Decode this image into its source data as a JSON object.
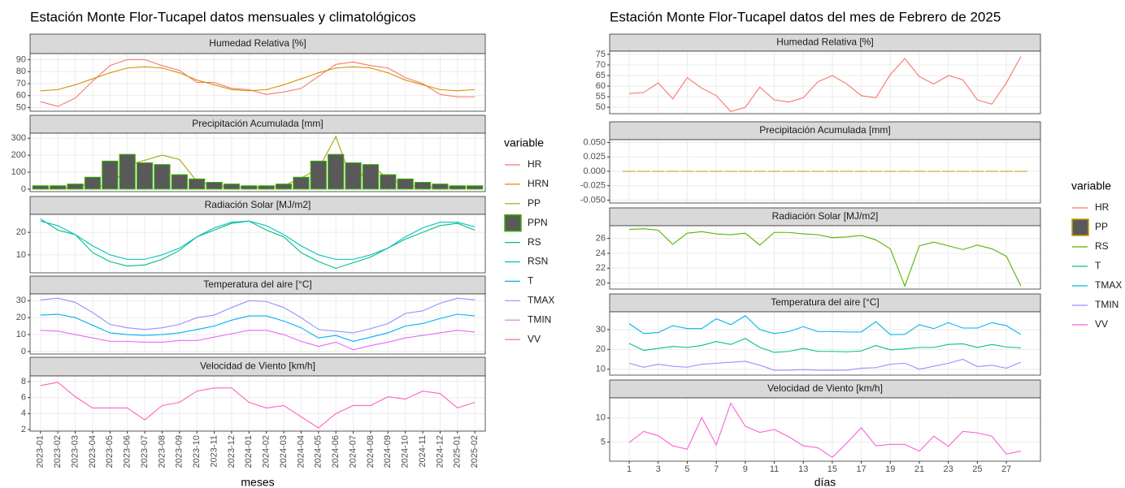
{
  "chart_data": [
    {
      "type": "line",
      "title": "Estación Monte Flor-Tucapel datos mensuales y climatológicos",
      "x_label": "meses",
      "legend_title": "variable",
      "categories": [
        "2023-01",
        "2023-02",
        "2023-03",
        "2023-04",
        "2023-05",
        "2023-06",
        "2023-07",
        "2023-08",
        "2023-09",
        "2023-10",
        "2023-11",
        "2023-12",
        "2024-01",
        "2024-02",
        "2024-03",
        "2024-04",
        "2024-05",
        "2024-06",
        "2024-07",
        "2024-08",
        "2024-09",
        "2024-10",
        "2024-11",
        "2024-12",
        "2025-01",
        "2025-02"
      ],
      "facets": [
        {
          "title": "Humedad Relativa [%]",
          "ylim": [
            47,
            95
          ],
          "yticks": [
            50,
            60,
            70,
            80,
            90
          ],
          "series": [
            {
              "name": "HR",
              "color": "#F8766D",
              "values": [
                55,
                51,
                58,
                72,
                85,
                90,
                90,
                85,
                81,
                71,
                71,
                66,
                65,
                61,
                63,
                66,
                76,
                86,
                88,
                85,
                83,
                75,
                70,
                61,
                59,
                59
              ]
            },
            {
              "name": "HRN",
              "color": "#D89000",
              "values": [
                64,
                65,
                69,
                74,
                79,
                83,
                84,
                83,
                79,
                73,
                69,
                65,
                64,
                65,
                69,
                74,
                79,
                83,
                84,
                83,
                79,
                73,
                69,
                65,
                64,
                65
              ]
            }
          ]
        },
        {
          "title": "Precipitación Acumulada [mm]",
          "ylim": [
            -15,
            330
          ],
          "yticks": [
            0,
            100,
            200,
            300
          ],
          "series": [
            {
              "name": "PP",
              "color": "#A3A500",
              "values": [
                5,
                5,
                10,
                35,
                5,
                140,
                170,
                200,
                175,
                45,
                20,
                10,
                10,
                10,
                20,
                65,
                120,
                310,
                25,
                145,
                60,
                25,
                15,
                10,
                10,
                10
              ]
            },
            {
              "name": "PPN",
              "color": "#39B600",
              "fill": "#595959",
              "style": "bar",
              "values": [
                20,
                20,
                30,
                70,
                165,
                205,
                155,
                145,
                85,
                60,
                40,
                30,
                20,
                20,
                30,
                70,
                165,
                205,
                155,
                145,
                85,
                60,
                40,
                30,
                20,
                20
              ]
            }
          ]
        },
        {
          "title": "Radiación Solar [MJ/m2]",
          "ylim": [
            2,
            28
          ],
          "yticks": [
            10,
            20
          ],
          "series": [
            {
              "name": "RS",
              "color": "#00BF7D",
              "values": [
                26,
                21,
                19,
                11,
                7,
                5,
                5.5,
                8,
                12,
                18,
                21,
                24,
                25,
                21,
                18,
                11,
                7,
                4,
                6.5,
                9,
                13,
                17,
                20,
                23,
                24,
                21
              ]
            },
            {
              "name": "RSN",
              "color": "#00BFC4",
              "values": [
                25,
                23,
                19,
                14,
                10,
                8,
                8,
                10,
                13,
                18,
                22,
                24.5,
                25,
                23,
                19,
                14,
                10,
                8,
                8,
                10,
                13,
                18,
                22,
                24.5,
                24.5,
                22.5
              ]
            }
          ]
        },
        {
          "title": "Temperatura del aire [°C]",
          "ylim": [
            -1.5,
            34
          ],
          "yticks": [
            0,
            10,
            20,
            30
          ],
          "series": [
            {
              "name": "T",
              "color": "#00B0F6",
              "values": [
                21.5,
                22,
                20,
                15.5,
                11,
                10,
                9.5,
                10,
                11,
                13,
                15,
                18.5,
                21,
                21,
                18,
                14,
                8,
                9.5,
                6,
                8.5,
                11,
                15,
                16.5,
                19.5,
                22,
                21
              ]
            },
            {
              "name": "TMAX",
              "color": "#9590FF",
              "values": [
                30.5,
                31.5,
                29,
                23,
                16,
                14,
                13,
                14,
                16,
                20,
                21.5,
                26,
                30,
                29.5,
                26,
                20,
                13,
                12,
                11,
                13.5,
                16.5,
                22.5,
                24,
                28.5,
                31.5,
                30.5
              ]
            },
            {
              "name": "TMIN",
              "color": "#E76BF3",
              "values": [
                12.5,
                12,
                10,
                8,
                6,
                6,
                5.5,
                5.5,
                6.5,
                6.5,
                8.5,
                10.5,
                12.5,
                12.5,
                10,
                6,
                3,
                5.5,
                1,
                3.5,
                5.5,
                8,
                9.5,
                11,
                12.5,
                11.5
              ]
            }
          ]
        },
        {
          "title": "Velocidad de Viento [km/h]",
          "ylim": [
            1.8,
            8.7
          ],
          "yticks": [
            2,
            4,
            6,
            8
          ],
          "series": [
            {
              "name": "VV",
              "color": "#FF62BC",
              "values": [
                7.5,
                7.9,
                6.1,
                4.7,
                4.7,
                4.7,
                3.2,
                5.0,
                5.4,
                6.8,
                7.2,
                7.2,
                5.4,
                4.7,
                5.0,
                3.6,
                2.2,
                4.0,
                5.0,
                5.0,
                6.1,
                5.8,
                6.8,
                6.5,
                4.7,
                5.4
              ]
            }
          ]
        }
      ]
    },
    {
      "type": "line",
      "title": "Estación Monte Flor-Tucapel datos del mes de Febrero de 2025",
      "x_label": "días",
      "legend_title": "variable",
      "x": [
        1,
        2,
        3,
        4,
        5,
        6,
        7,
        8,
        9,
        10,
        11,
        12,
        13,
        14,
        15,
        16,
        17,
        18,
        19,
        20,
        21,
        22,
        23,
        24,
        25,
        26,
        27,
        28
      ],
      "xlim": [
        -0.35,
        29.35
      ],
      "xticks": [
        1,
        3,
        5,
        7,
        9,
        11,
        13,
        15,
        17,
        19,
        21,
        23,
        25,
        27
      ],
      "facets": [
        {
          "title": "Humedad Relativa [%]",
          "ylim": [
            47,
            76.5
          ],
          "yticks": [
            50,
            55,
            60,
            65,
            70,
            75
          ],
          "series": [
            {
              "name": "HR",
              "color": "#F8766D",
              "values": [
                56.5,
                57,
                61.5,
                54,
                64,
                59,
                55.5,
                48,
                50,
                59.5,
                53.5,
                52.5,
                54.5,
                62,
                65,
                61,
                55.5,
                54.5,
                65.5,
                73,
                64.5,
                61,
                65,
                63,
                53.5,
                51.5,
                61.5,
                74
              ]
            }
          ]
        },
        {
          "title": "Precipitación Acumulada [mm]",
          "ylim": [
            -0.055,
            0.055
          ],
          "yticks": [
            {
              "value": -0.05,
              "label": "-0.050"
            },
            {
              "value": -0.025,
              "label": "-0.025"
            },
            {
              "value": 0,
              "label": "0.000"
            },
            {
              "value": 0.025,
              "label": "0.025"
            },
            {
              "value": 0.05,
              "label": "0.050"
            }
          ],
          "series": [
            {
              "name": "PP",
              "color": "#C49A00",
              "fill": "#595959",
              "style": "bar",
              "values": [
                0,
                0,
                0,
                0,
                0,
                0,
                0,
                0,
                0,
                0,
                0,
                0,
                0,
                0,
                0,
                0,
                0,
                0,
                0,
                0,
                0,
                0,
                0,
                0,
                0,
                0,
                0,
                0
              ]
            }
          ]
        },
        {
          "title": "Radiación Solar [MJ/m2]",
          "ylim": [
            19.2,
            27.7
          ],
          "yticks": [
            20,
            22,
            24,
            26
          ],
          "series": [
            {
              "name": "RS",
              "color": "#53B400",
              "values": [
                27.2,
                27.3,
                27.1,
                25.2,
                26.7,
                26.9,
                26.6,
                26.5,
                26.7,
                25.1,
                26.8,
                26.8,
                26.6,
                26.5,
                26.1,
                26.2,
                26.4,
                25.8,
                24.6,
                19.6,
                25.0,
                25.5,
                25.0,
                24.5,
                25.1,
                24.6,
                23.6,
                19.6
              ]
            }
          ]
        },
        {
          "title": "Temperatura del aire [°C]",
          "ylim": [
            7,
            39
          ],
          "yticks": [
            10,
            20,
            30
          ],
          "series": [
            {
              "name": "T",
              "color": "#00C094",
              "values": [
                23,
                19.5,
                20.5,
                21.5,
                21,
                22,
                24,
                22.5,
                25.5,
                21,
                18.5,
                19,
                20.5,
                19,
                19,
                18.8,
                19.2,
                22,
                19.8,
                20.2,
                21,
                21,
                22.5,
                22.8,
                21,
                22.5,
                21.2,
                20.8
              ]
            },
            {
              "name": "TMAX",
              "color": "#00B6EB",
              "values": [
                33,
                28,
                28.5,
                32,
                30.5,
                30.5,
                35.5,
                32.5,
                37,
                30,
                28,
                29,
                31.5,
                29,
                29,
                28.8,
                28.8,
                34,
                27.5,
                27.6,
                32.5,
                30.5,
                33.5,
                30.8,
                30.8,
                33.5,
                32,
                27.5
              ]
            },
            {
              "name": "TMIN",
              "color": "#A58AFF",
              "values": [
                13,
                11,
                12.5,
                11.5,
                11,
                12.5,
                13,
                13.5,
                14,
                12,
                9.5,
                9.5,
                9.8,
                9.5,
                9.5,
                9.5,
                10.5,
                10.8,
                12.5,
                13,
                10,
                11.5,
                13,
                15,
                11.3,
                12,
                10.5,
                13.5
              ]
            }
          ]
        },
        {
          "title": "Velocidad de Viento [km/h]",
          "ylim": [
            1,
            14.2
          ],
          "yticks": [
            5,
            10
          ],
          "series": [
            {
              "name": "VV",
              "color": "#FB61D7",
              "values": [
                4.9,
                7.2,
                6.3,
                4.2,
                3.5,
                10.1,
                4.4,
                13.1,
                8.3,
                7.0,
                7.6,
                6.1,
                4.2,
                3.8,
                1.8,
                4.8,
                8.0,
                4.2,
                4.5,
                4.5,
                3.1,
                6.2,
                4.1,
                7.2,
                6.9,
                6.2,
                2.5,
                3.1
              ]
            }
          ]
        }
      ]
    }
  ]
}
